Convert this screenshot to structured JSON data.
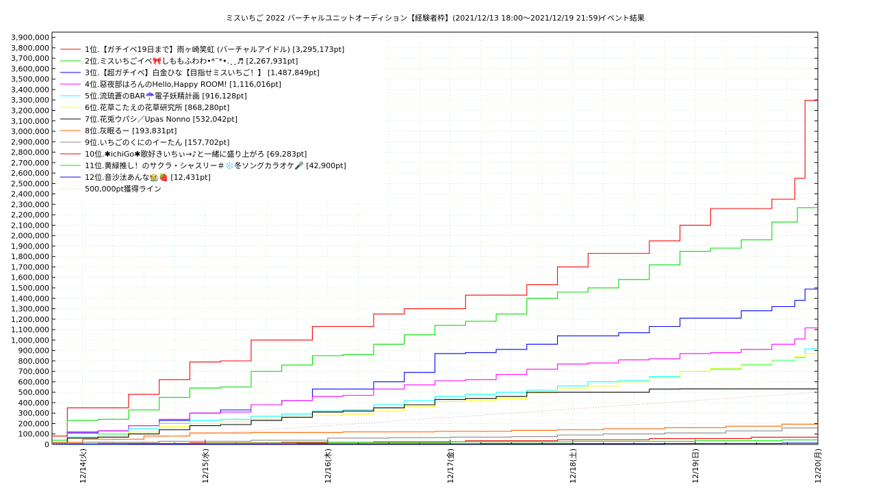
{
  "chart_data": {
    "type": "line",
    "title": "ミスいちご 2022 バーチャルユニットオーディション【経験者枠】(2021/12/13 18:00〜2021/12/19 21:59)",
    "subtitle": "イベント結果",
    "x_ticks": [
      "12/14(火)",
      "12/15(水)",
      "12/16(木)",
      "12/17(金)",
      "12/18(土)",
      "12/19(日)",
      "12/20(月)"
    ],
    "x_range": [
      "2021/12/13 18:00",
      "2021/12/20 00:00"
    ],
    "ylim": [
      0,
      3950000
    ],
    "y_ticks": [
      "0",
      "100,000",
      "200,000",
      "300,000",
      "400,000",
      "500,000",
      "600,000",
      "700,000",
      "800,000",
      "900,000",
      "1,000,000",
      "1,100,000",
      "1,200,000",
      "1,300,000",
      "1,400,000",
      "1,500,000",
      "1,600,000",
      "1,700,000",
      "1,800,000",
      "1,900,000",
      "2,000,000",
      "2,100,000",
      "2,200,000",
      "2,300,000",
      "2,400,000",
      "2,500,000",
      "2,600,000",
      "2,700,000",
      "2,800,000",
      "2,900,000",
      "3,000,000",
      "3,100,000",
      "3,200,000",
      "3,300,000",
      "3,400,000",
      "3,500,000",
      "3,600,000",
      "3,700,000",
      "3,800,000",
      "3,900,000"
    ],
    "grid": true,
    "legend_position": "top-left",
    "series": [
      {
        "name": "1位.【ガチイベ19日まで】雨ヶ崎笑虹 (バーチャルアイドル) [3,295,173pt]",
        "color": "#ff0000",
        "x": [
          "12/13 18:00",
          "12/14 00:00",
          "12/14 06:00",
          "12/14 12:00",
          "12/14 18:00",
          "12/15 00:00",
          "12/15 06:00",
          "12/15 12:00",
          "12/15 18:00",
          "12/16 00:00",
          "12/16 06:00",
          "12/16 12:00",
          "12/16 18:00",
          "12/17 00:00",
          "12/17 06:00",
          "12/17 12:00",
          "12/17 18:00",
          "12/18 00:00",
          "12/18 06:00",
          "12/18 12:00",
          "12/18 18:00",
          "12/19 00:00",
          "12/19 06:00",
          "12/19 12:00",
          "12/19 18:00",
          "12/19 21:00",
          "12/19 21:59",
          "12/20 00:00"
        ],
        "values": [
          80000,
          350000,
          350000,
          480000,
          620000,
          790000,
          800000,
          1000000,
          1000000,
          1130000,
          1130000,
          1250000,
          1300000,
          1300000,
          1430000,
          1430000,
          1530000,
          1700000,
          1830000,
          1830000,
          1950000,
          2100000,
          2260000,
          2260000,
          2350000,
          2550000,
          3295173,
          3295173
        ]
      },
      {
        "name": "2位.ミスいちごイベ🎀しももふわわ•*¨*•.¸¸♬ [2,267,931pt]",
        "color": "#00dd00",
        "x": [
          "12/13 18:00",
          "12/14 00:00",
          "12/14 06:00",
          "12/14 12:00",
          "12/14 18:00",
          "12/15 00:00",
          "12/15 06:00",
          "12/15 12:00",
          "12/15 18:00",
          "12/16 00:00",
          "12/16 06:00",
          "12/16 12:00",
          "12/16 18:00",
          "12/17 00:00",
          "12/17 06:00",
          "12/17 12:00",
          "12/17 18:00",
          "12/18 00:00",
          "12/18 06:00",
          "12/18 12:00",
          "12/18 18:00",
          "12/19 00:00",
          "12/19 06:00",
          "12/19 12:00",
          "12/19 18:00",
          "12/19 21:59",
          "12/20 00:00"
        ],
        "values": [
          40000,
          230000,
          240000,
          330000,
          450000,
          540000,
          550000,
          700000,
          760000,
          850000,
          860000,
          960000,
          1050000,
          1140000,
          1180000,
          1250000,
          1400000,
          1460000,
          1500000,
          1580000,
          1720000,
          1850000,
          1880000,
          1960000,
          2130000,
          2267931,
          2267931
        ]
      },
      {
        "name": "3位.【超ガチイベ】白金ひな【目指せミスいちご！】 [1,487,849pt]",
        "color": "#0000ff",
        "x": [
          "12/13 18:00",
          "12/14 00:00",
          "12/14 06:00",
          "12/14 12:00",
          "12/14 18:00",
          "12/15 00:00",
          "12/15 06:00",
          "12/15 12:00",
          "12/15 18:00",
          "12/16 00:00",
          "12/16 06:00",
          "12/16 12:00",
          "12/16 18:00",
          "12/17 00:00",
          "12/17 06:00",
          "12/17 12:00",
          "12/17 18:00",
          "12/18 00:00",
          "12/18 06:00",
          "12/18 12:00",
          "12/18 18:00",
          "12/19 00:00",
          "12/19 06:00",
          "12/19 12:00",
          "12/19 18:00",
          "12/19 21:00",
          "12/19 21:59",
          "12/20 00:00"
        ],
        "values": [
          10000,
          110000,
          130000,
          180000,
          230000,
          300000,
          330000,
          380000,
          420000,
          530000,
          530000,
          600000,
          690000,
          870000,
          880000,
          910000,
          960000,
          1040000,
          1040000,
          1070000,
          1130000,
          1210000,
          1210000,
          1280000,
          1320000,
          1380000,
          1487849,
          1487849
        ]
      },
      {
        "name": "4位.惡夜部はろんのHello,Happy ROOM! [1,116,016pt]",
        "color": "#ff00ff",
        "x": [
          "12/13 18:00",
          "12/14 00:00",
          "12/14 06:00",
          "12/14 12:00",
          "12/14 18:00",
          "12/15 00:00",
          "12/15 06:00",
          "12/15 12:00",
          "12/15 18:00",
          "12/16 00:00",
          "12/16 06:00",
          "12/16 12:00",
          "12/16 18:00",
          "12/17 00:00",
          "12/17 06:00",
          "12/17 12:00",
          "12/17 18:00",
          "12/18 00:00",
          "12/18 06:00",
          "12/18 12:00",
          "12/18 18:00",
          "12/19 00:00",
          "12/19 06:00",
          "12/19 12:00",
          "12/19 18:00",
          "12/19 21:00",
          "12/19 21:59",
          "12/20 00:00"
        ],
        "values": [
          10000,
          120000,
          130000,
          180000,
          240000,
          300000,
          310000,
          380000,
          420000,
          460000,
          470000,
          530000,
          570000,
          610000,
          620000,
          670000,
          720000,
          770000,
          780000,
          810000,
          820000,
          870000,
          880000,
          910000,
          960000,
          1010000,
          1116016,
          1116016
        ]
      },
      {
        "name": "5位.流琉蒼のBAR☂️電子妖精計画 [916,128pt]",
        "color": "#00ffff",
        "x": [
          "12/13 18:00",
          "12/14 00:00",
          "12/14 06:00",
          "12/14 12:00",
          "12/14 18:00",
          "12/15 00:00",
          "12/15 06:00",
          "12/15 12:00",
          "12/15 18:00",
          "12/16 00:00",
          "12/16 06:00",
          "12/16 12:00",
          "12/16 18:00",
          "12/17 00:00",
          "12/17 06:00",
          "12/17 12:00",
          "12/17 18:00",
          "12/18 00:00",
          "12/18 06:00",
          "12/18 12:00",
          "12/18 18:00",
          "12/19 00:00",
          "12/19 06:00",
          "12/19 12:00",
          "12/19 18:00",
          "12/19 21:00",
          "12/19 21:59",
          "12/20 00:00"
        ],
        "values": [
          5000,
          70000,
          100000,
          150000,
          200000,
          230000,
          240000,
          270000,
          290000,
          320000,
          330000,
          380000,
          420000,
          460000,
          480000,
          500000,
          520000,
          560000,
          600000,
          610000,
          650000,
          700000,
          720000,
          760000,
          800000,
          830000,
          916128,
          916128
        ]
      },
      {
        "name": "6位.花草こたえの花草研究所 [868,280pt]",
        "color": "#ffff00",
        "x": [
          "12/13 18:00",
          "12/14 00:00",
          "12/14 06:00",
          "12/14 12:00",
          "12/14 18:00",
          "12/15 00:00",
          "12/15 06:00",
          "12/15 12:00",
          "12/15 18:00",
          "12/16 00:00",
          "12/16 06:00",
          "12/16 12:00",
          "12/16 18:00",
          "12/17 00:00",
          "12/17 06:00",
          "12/17 12:00",
          "12/17 18:00",
          "12/18 00:00",
          "12/18 06:00",
          "12/18 12:00",
          "12/18 18:00",
          "12/19 00:00",
          "12/19 06:00",
          "12/19 12:00",
          "12/19 18:00",
          "12/19 21:00",
          "12/19 21:59",
          "12/20 00:00"
        ],
        "values": [
          5000,
          60000,
          90000,
          120000,
          170000,
          200000,
          220000,
          240000,
          260000,
          280000,
          290000,
          320000,
          360000,
          410000,
          420000,
          440000,
          490000,
          530000,
          560000,
          600000,
          640000,
          700000,
          730000,
          770000,
          810000,
          840000,
          868280,
          868280
        ]
      },
      {
        "name": "7位.花兎ウパシ／Upas Nonno [532,042pt]",
        "color": "#000000",
        "x": [
          "12/13 18:00",
          "12/14 00:00",
          "12/14 06:00",
          "12/14 12:00",
          "12/14 18:00",
          "12/15 00:00",
          "12/15 06:00",
          "12/15 12:00",
          "12/15 18:00",
          "12/16 00:00",
          "12/16 06:00",
          "12/16 12:00",
          "12/16 18:00",
          "12/17 00:00",
          "12/17 06:00",
          "12/17 12:00",
          "12/17 18:00",
          "12/18 00:00",
          "12/18 06:00",
          "12/18 12:00",
          "12/18 18:00",
          "12/19 00:00",
          "12/19 06:00",
          "12/19 12:00",
          "12/19 18:00",
          "12/19 21:59",
          "12/20 00:00"
        ],
        "values": [
          5000,
          60000,
          70000,
          100000,
          140000,
          180000,
          190000,
          230000,
          260000,
          310000,
          320000,
          350000,
          380000,
          430000,
          440000,
          460000,
          500000,
          500000,
          500000,
          500000,
          530000,
          532042,
          532042,
          532042,
          532042,
          532042,
          532042
        ]
      },
      {
        "name": "8位.灰眠るー [193,831pt]",
        "color": "#ff6600",
        "x": [
          "12/13 18:00",
          "12/14 06:00",
          "12/14 18:00",
          "12/15 00:00",
          "12/15 18:00",
          "12/16 12:00",
          "12/17 06:00",
          "12/17 18:00",
          "12/18 00:00",
          "12/18 12:00",
          "12/19 00:00",
          "12/19 12:00",
          "12/19 21:59",
          "12/20 00:00"
        ],
        "values": [
          20000,
          50000,
          80000,
          110000,
          115000,
          120000,
          125000,
          135000,
          140000,
          150000,
          160000,
          175000,
          193831,
          193831
        ]
      },
      {
        "name": "9位.いちごのくにのイーたん [157,702pt]",
        "color": "#888888",
        "x": [
          "12/13 18:00",
          "12/14 06:00",
          "12/15 00:00",
          "12/15 18:00",
          "12/16 06:00",
          "12/16 18:00",
          "12/17 06:00",
          "12/17 18:00",
          "12/18 00:00",
          "12/18 12:00",
          "12/19 00:00",
          "12/19 12:00",
          "12/19 21:59",
          "12/20 00:00"
        ],
        "values": [
          10000,
          20000,
          30000,
          40000,
          60000,
          65000,
          70000,
          75000,
          90000,
          100000,
          110000,
          130000,
          157702,
          157702
        ]
      },
      {
        "name": "10位.✱ichiGo✱歌好きいちぃ→♪と一緒に盛り上がろ [69,283pt]",
        "color": "#ee0000",
        "x": [
          "12/13 18:00",
          "12/14 12:00",
          "12/15 06:00",
          "12/16 00:00",
          "12/16 18:00",
          "12/17 12:00",
          "12/18 06:00",
          "12/19 00:00",
          "12/19 21:59",
          "12/20 00:00"
        ],
        "values": [
          5000,
          10000,
          15000,
          20000,
          25000,
          35000,
          45000,
          55000,
          69283,
          69283
        ]
      },
      {
        "name": "11位.黄緑推し！のサクラ・シャスリー＃❄️冬ソングカラオケ🎤 [42,900pt]",
        "color": "#00ee00",
        "x": [
          "12/13 18:00",
          "12/14 12:00",
          "12/15 12:00",
          "12/16 12:00",
          "12/17 12:00",
          "12/18 12:00",
          "12/19 12:00",
          "12/19 21:59",
          "12/20 00:00"
        ],
        "values": [
          5000,
          8000,
          12000,
          18000,
          25000,
          30000,
          35000,
          42900,
          42900
        ]
      },
      {
        "name": "12位.音沙汰あんな🧑‍🌾🍓 [12,431pt]",
        "color": "#0000ee",
        "x": [
          "12/13 18:00",
          "12/15 00:00",
          "12/16 12:00",
          "12/18 00:00",
          "12/19 12:00",
          "12/19 21:59",
          "12/20 00:00"
        ],
        "values": [
          1000,
          3000,
          5000,
          7000,
          9000,
          12431,
          12431
        ]
      },
      {
        "name": "500,000pt獲得ライン",
        "color": "#d9a0a0",
        "dashed": true,
        "x": [
          "12/13 18:00",
          "12/20 00:00"
        ],
        "values": [
          0,
          500000
        ]
      }
    ]
  }
}
